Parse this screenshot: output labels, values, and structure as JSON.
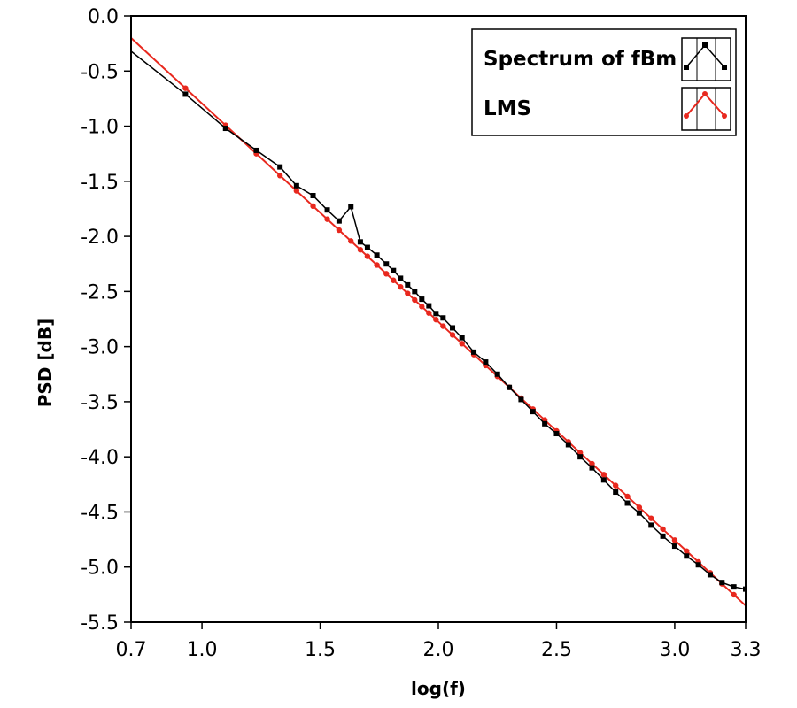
{
  "chart_data": {
    "type": "line",
    "title": "",
    "xlabel": "log(f)",
    "ylabel": "PSD [dB]",
    "xlim": [
      0.7,
      3.3
    ],
    "ylim": [
      -5.5,
      0.0
    ],
    "x_ticks": [
      0.7,
      1.0,
      1.5,
      2.0,
      2.5,
      3.0,
      3.3
    ],
    "x_tick_labels": [
      "0.7",
      "1.0",
      "1.5",
      "2.0",
      "2.5",
      "3.0",
      "3.3"
    ],
    "y_ticks": [
      0.0,
      -0.5,
      -1.0,
      -1.5,
      -2.0,
      -2.5,
      -3.0,
      -3.5,
      -4.0,
      -4.5,
      -5.0,
      -5.5
    ],
    "y_tick_labels": [
      "0.0",
      "-0.5",
      "-1.0",
      "-1.5",
      "-2.0",
      "-2.5",
      "-3.0",
      "-3.5",
      "-4.0",
      "-4.5",
      "-5.0",
      "-5.5"
    ],
    "grid": false,
    "legend_position": "top-right",
    "series": [
      {
        "name": "Spectrum of fBm",
        "color": "#000000",
        "x": [
          0.7,
          0.93,
          1.1,
          1.23,
          1.33,
          1.4,
          1.47,
          1.53,
          1.58,
          1.63,
          1.67,
          1.7,
          1.74,
          1.78,
          1.81,
          1.84,
          1.87,
          1.9,
          1.93,
          1.96,
          1.99,
          2.02,
          2.06,
          2.1,
          2.15,
          2.2,
          2.25,
          2.3,
          2.35,
          2.4,
          2.45,
          2.5,
          2.55,
          2.6,
          2.65,
          2.7,
          2.75,
          2.8,
          2.85,
          2.9,
          2.95,
          3.0,
          3.05,
          3.1,
          3.15,
          3.2,
          3.25,
          3.3
        ],
        "y": [
          -0.32,
          -0.71,
          -1.02,
          -1.22,
          -1.37,
          -1.54,
          -1.63,
          -1.76,
          -1.86,
          -1.73,
          -2.05,
          -2.1,
          -2.17,
          -2.25,
          -2.31,
          -2.38,
          -2.44,
          -2.5,
          -2.57,
          -2.63,
          -2.7,
          -2.74,
          -2.83,
          -2.92,
          -3.05,
          -3.14,
          -3.25,
          -3.37,
          -3.48,
          -3.59,
          -3.7,
          -3.79,
          -3.89,
          -4.0,
          -4.1,
          -4.21,
          -4.32,
          -4.42,
          -4.51,
          -4.62,
          -4.72,
          -4.81,
          -4.9,
          -4.98,
          -5.07,
          -5.14,
          -5.18,
          -5.2
        ]
      },
      {
        "name": "LMS",
        "color": "#e8281e",
        "x": [
          0.7,
          3.3
        ],
        "y": [
          -0.2,
          -5.35
        ],
        "marker_x": [
          0.93,
          1.1,
          1.23,
          1.33,
          1.4,
          1.47,
          1.53,
          1.58,
          1.63,
          1.67,
          1.7,
          1.74,
          1.78,
          1.81,
          1.84,
          1.87,
          1.9,
          1.93,
          1.96,
          1.99,
          2.02,
          2.06,
          2.1,
          2.15,
          2.2,
          2.25,
          2.3,
          2.35,
          2.4,
          2.45,
          2.5,
          2.55,
          2.6,
          2.65,
          2.7,
          2.75,
          2.8,
          2.85,
          2.9,
          2.95,
          3.0,
          3.05,
          3.1,
          3.15,
          3.2,
          3.25
        ]
      }
    ]
  }
}
